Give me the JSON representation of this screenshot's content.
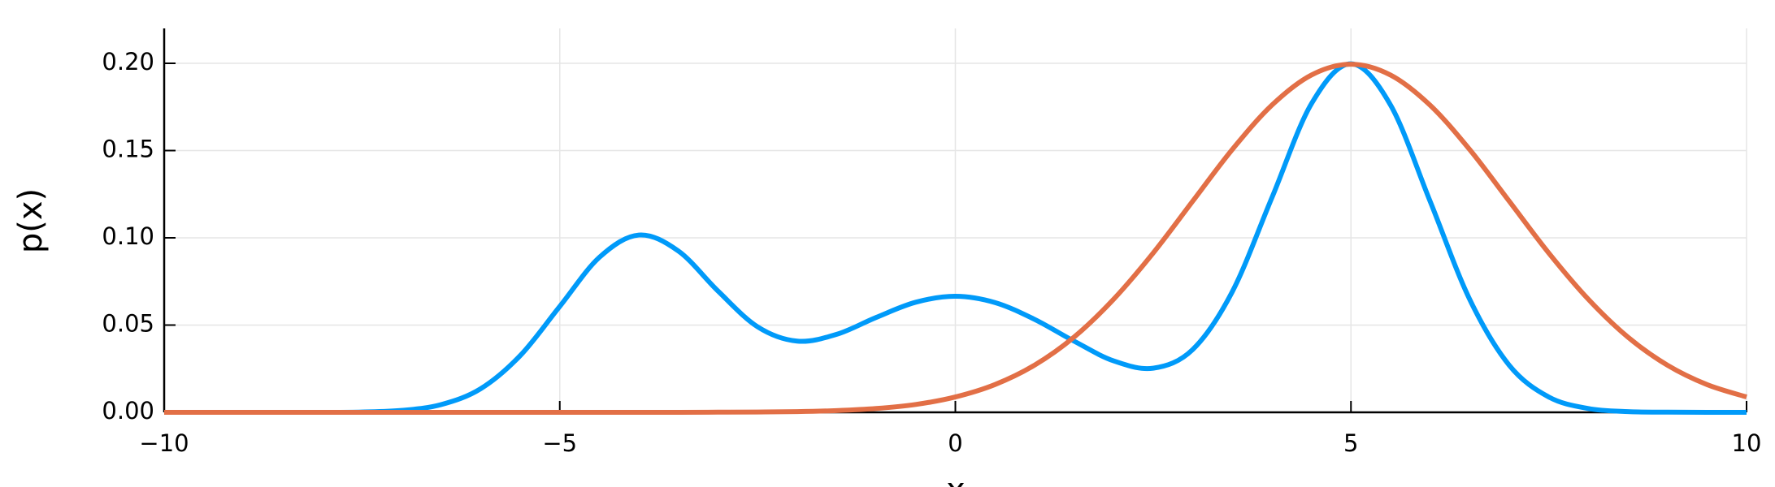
{
  "chart_data": {
    "type": "line",
    "xlabel": "x",
    "ylabel": "p(x)",
    "x": [
      -10,
      -9.5,
      -9,
      -8.5,
      -8,
      -7.5,
      -7,
      -6.5,
      -6,
      -5.5,
      -5,
      -4.5,
      -4,
      -3.5,
      -3,
      -2.5,
      -2,
      -1.5,
      -1,
      -0.5,
      0,
      0.5,
      1,
      1.5,
      2,
      2.5,
      3,
      3.5,
      4,
      4.5,
      5,
      5.5,
      6,
      6.5,
      7,
      7.5,
      8,
      8.5,
      9,
      9.5,
      10
    ],
    "series": [
      {
        "color": "#009af9",
        "values": [
          0,
          0,
          0,
          0,
          0,
          0.0002,
          0.0011,
          0.0044,
          0.0135,
          0.0325,
          0.0607,
          0.0888,
          0.1016,
          0.0924,
          0.0695,
          0.049,
          0.0408,
          0.0447,
          0.0544,
          0.0631,
          0.0665,
          0.0629,
          0.0533,
          0.0408,
          0.0295,
          0.0253,
          0.036,
          0.0691,
          0.1229,
          0.1768,
          0.1997,
          0.1761,
          0.121,
          0.0648,
          0.027,
          0.0088,
          0.0022,
          0.0004,
          0.0001,
          0,
          0
        ]
      },
      {
        "color": "#e26f46",
        "values": [
          0,
          0,
          0,
          0,
          0,
          0,
          0,
          0,
          0,
          0,
          0,
          0,
          0,
          0,
          0.0001,
          0.0002,
          0.0004,
          0.001,
          0.0022,
          0.0045,
          0.0088,
          0.0159,
          0.027,
          0.0431,
          0.0648,
          0.0913,
          0.121,
          0.1506,
          0.176,
          0.1933,
          0.1995,
          0.1933,
          0.176,
          0.1506,
          0.121,
          0.0913,
          0.0648,
          0.0431,
          0.027,
          0.0159,
          0.0088
        ]
      }
    ],
    "xlim": [
      -10,
      10
    ],
    "xticks": [
      {
        "value": -10,
        "label": "−10"
      },
      {
        "value": -5,
        "label": "−5"
      },
      0,
      5,
      10
    ],
    "ylim": [
      0,
      0.22
    ],
    "yticks": [
      {
        "value": 0,
        "label": "0.00"
      },
      {
        "value": 0.05,
        "label": "0.05"
      },
      {
        "value": 0.1,
        "label": "0.10"
      },
      {
        "value": 0.15,
        "label": "0.15"
      },
      {
        "value": 0.2,
        "label": "0.20"
      }
    ],
    "grid": true
  }
}
